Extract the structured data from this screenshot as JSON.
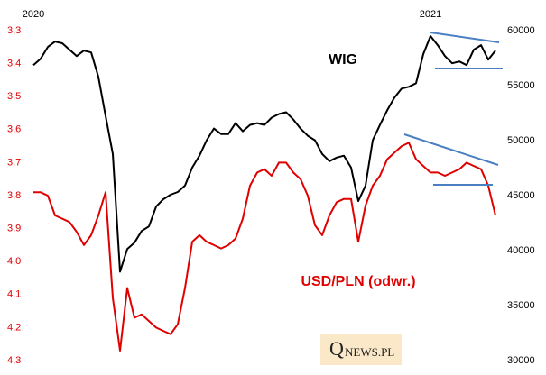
{
  "chart_data": {
    "type": "line",
    "categories": [
      "2020",
      null,
      null,
      null,
      null,
      null,
      null,
      null,
      null,
      null,
      null,
      null,
      null,
      null,
      null,
      null,
      null,
      null,
      null,
      null,
      null,
      null,
      null,
      null,
      null,
      null,
      null,
      null,
      null,
      null,
      null,
      null,
      null,
      null,
      null,
      null,
      null,
      null,
      null,
      null,
      null,
      null,
      null,
      null,
      null,
      null,
      null,
      null,
      null,
      null,
      null,
      null,
      null,
      null,
      null,
      "2021",
      null,
      null,
      null,
      null,
      null,
      null,
      null,
      null,
      null
    ],
    "ylim": [
      4.3,
      3.3
    ],
    "yticks": [
      {
        "value": 3.3,
        "label": "3,3"
      },
      {
        "value": 3.4,
        "label": "3,4"
      },
      {
        "value": 3.5,
        "label": "3,5"
      },
      {
        "value": 3.6,
        "label": "3,6"
      },
      {
        "value": 3.7,
        "label": "3,7"
      },
      {
        "value": 3.8,
        "label": "3,8"
      },
      {
        "value": 3.9,
        "label": "3,9"
      },
      {
        "value": 4.0,
        "label": "4,0"
      },
      {
        "value": 4.1,
        "label": "4,1"
      },
      {
        "value": 4.2,
        "label": "4,2"
      },
      {
        "value": 4.3,
        "label": "4,3"
      }
    ],
    "y2lim": [
      30000,
      60000
    ],
    "y2ticks": [
      30000,
      35000,
      40000,
      45000,
      50000,
      55000,
      60000
    ],
    "grid": false,
    "series": [
      {
        "name": "WIG",
        "color": "#000000",
        "axis": "y2",
        "values": [
          56870,
          57445,
          58520,
          59010,
          58850,
          58270,
          57690,
          58190,
          58020,
          55800,
          52250,
          48790,
          38080,
          40150,
          40720,
          41790,
          42200,
          44010,
          44670,
          45080,
          45330,
          45910,
          47550,
          48630,
          50030,
          51100,
          50600,
          50600,
          51590,
          50850,
          51430,
          51590,
          51430,
          52090,
          52420,
          52580,
          51920,
          51100,
          50440,
          50030,
          48790,
          48130,
          48460,
          48630,
          47550,
          44500,
          45910,
          50030,
          51430,
          52750,
          53900,
          54730,
          54890,
          55220,
          57860,
          59510,
          58680,
          57690,
          57030,
          57200,
          56870,
          58270,
          58680,
          57360,
          58190
        ]
      },
      {
        "name": "USD/PLN (odwr.)",
        "color": "#e00000",
        "axis": "y",
        "values": [
          3.79,
          3.79,
          3.8,
          3.86,
          3.87,
          3.88,
          3.91,
          3.95,
          3.92,
          3.86,
          3.79,
          4.11,
          4.27,
          4.08,
          4.17,
          4.16,
          4.18,
          4.2,
          4.21,
          4.22,
          4.19,
          4.08,
          3.94,
          3.92,
          3.94,
          3.95,
          3.96,
          3.95,
          3.93,
          3.87,
          3.77,
          3.73,
          3.72,
          3.74,
          3.7,
          3.7,
          3.73,
          3.75,
          3.8,
          3.89,
          3.92,
          3.86,
          3.82,
          3.81,
          3.81,
          3.94,
          3.83,
          3.77,
          3.74,
          3.69,
          3.67,
          3.65,
          3.64,
          3.69,
          3.71,
          3.73,
          3.73,
          3.74,
          3.73,
          3.72,
          3.7,
          3.71,
          3.72,
          3.77,
          3.86
        ]
      }
    ],
    "logo": {
      "initial": "Q",
      "rest": "NEWS.PL"
    }
  }
}
